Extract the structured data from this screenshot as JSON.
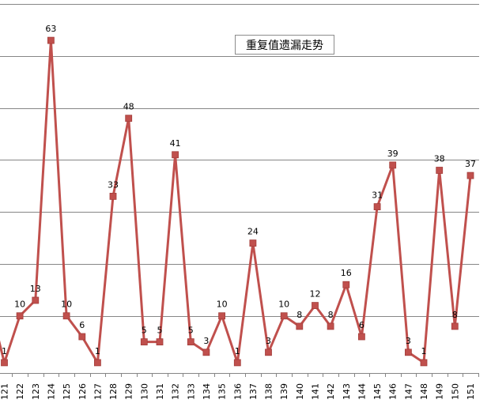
{
  "chart_data": {
    "type": "line",
    "title": "重复值遗漏走势",
    "xlabel": "",
    "ylabel": "",
    "ylim": [
      0,
      70
    ],
    "grid": true,
    "categories": [
      "121",
      "122",
      "123",
      "124",
      "125",
      "126",
      "127",
      "128",
      "129",
      "130",
      "131",
      "132",
      "133",
      "134",
      "135",
      "136",
      "137",
      "138",
      "139",
      "140",
      "141",
      "142",
      "143",
      "144",
      "145",
      "146",
      "147",
      "148",
      "149",
      "150",
      "151"
    ],
    "series": [
      {
        "values": [
          1,
          10,
          13,
          63,
          10,
          6,
          1,
          33,
          48,
          5,
          5,
          41,
          5,
          3,
          10,
          1,
          24,
          3,
          10,
          8,
          12,
          8,
          16,
          6,
          31,
          39,
          3,
          1,
          38,
          8,
          37
        ],
        "color": "#c0504d"
      }
    ],
    "left_edge_value": 13
  }
}
